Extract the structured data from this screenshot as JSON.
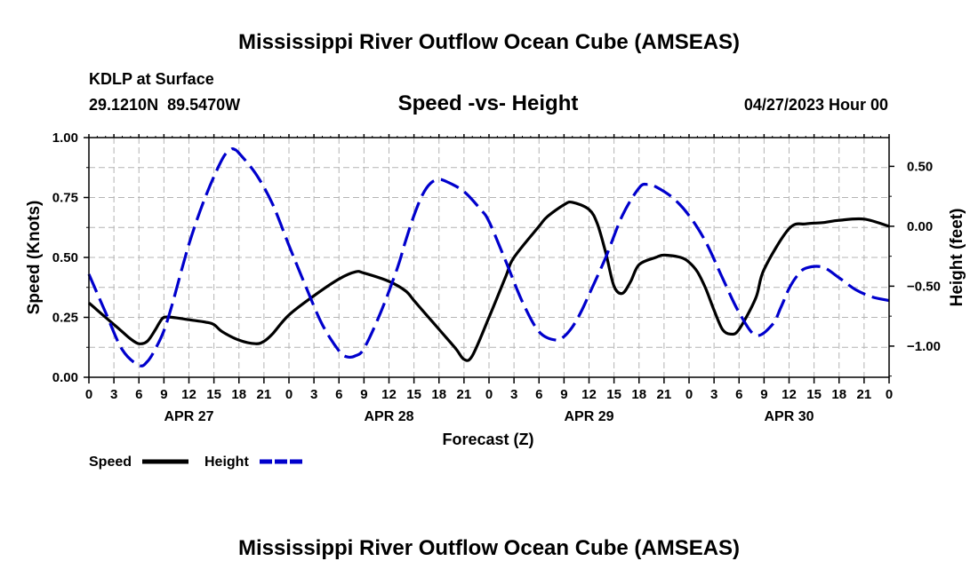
{
  "header": {
    "title": "Mississippi River Outflow Ocean Cube (AMSEAS)",
    "station": "KDLP at Surface",
    "coords": "29.1210N  89.5470W",
    "subtitle": "Speed -vs- Height",
    "run": "04/27/2023 Hour 00"
  },
  "footer": {
    "title": "Mississippi River Outflow Ocean Cube (AMSEAS)"
  },
  "chart_data": {
    "type": "line",
    "title": "Speed -vs- Height",
    "xlabel": "Forecast (Z)",
    "ylabel": "Speed (Knots)",
    "y2label": "Height (feet)",
    "x_range_hours": [
      0,
      96
    ],
    "ylim": [
      0,
      1.0
    ],
    "y2lim": [
      -1.26,
      0.74
    ],
    "x_tick_hours": [
      0,
      3,
      6,
      9,
      12,
      15,
      18,
      21,
      24,
      27,
      30,
      33,
      36,
      39,
      42,
      45,
      48,
      51,
      54,
      57,
      60,
      63,
      66,
      69,
      72,
      75,
      78,
      81,
      84,
      87,
      90,
      93,
      96
    ],
    "x_tick_labels": [
      "0",
      "3",
      "6",
      "9",
      "12",
      "15",
      "18",
      "21",
      "0",
      "3",
      "6",
      "9",
      "12",
      "15",
      "18",
      "21",
      "0",
      "3",
      "6",
      "9",
      "12",
      "15",
      "18",
      "21",
      "0",
      "3",
      "6",
      "9",
      "12",
      "15",
      "18",
      "21",
      "0"
    ],
    "day_labels": [
      {
        "hour": 12,
        "label": "APR 27"
      },
      {
        "hour": 36,
        "label": "APR 28"
      },
      {
        "hour": 60,
        "label": "APR 29"
      },
      {
        "hour": 84,
        "label": "APR 30"
      }
    ],
    "y_ticks": [
      0,
      0.25,
      0.5,
      0.75,
      1.0
    ],
    "y_tick_labels": [
      "0.00",
      "0.25",
      "0.50",
      "0.75",
      "1.00"
    ],
    "y2_ticks": [
      0.5,
      0,
      -0.5,
      -1.0
    ],
    "y2_tick_labels": [
      "0.50",
      "0.00",
      "−0.50",
      "−1.00"
    ],
    "grid": true,
    "legend": [
      {
        "name": "Speed",
        "color": "#000000",
        "dash": "solid"
      },
      {
        "name": "Height",
        "color": "#0000cc",
        "dash": "dashed"
      }
    ],
    "series": [
      {
        "name": "Speed",
        "axis": "left",
        "units": "knots",
        "color": "#000000",
        "hours": [
          0,
          1,
          2,
          3,
          4,
          5,
          6,
          7,
          8,
          8.5,
          9,
          10,
          12,
          14,
          15,
          16,
          18,
          20,
          21,
          22,
          24,
          27,
          30,
          32,
          33,
          36,
          38,
          39,
          40,
          42,
          44,
          45,
          46,
          48,
          50,
          51,
          54,
          55,
          57,
          58,
          60,
          61,
          62,
          63,
          64,
          65,
          66,
          68,
          69,
          71,
          72,
          73,
          74,
          75,
          76,
          77,
          78,
          80,
          81,
          84,
          86,
          88,
          90,
          93,
          96
        ],
        "values": [
          0.31,
          0.28,
          0.25,
          0.22,
          0.19,
          0.16,
          0.14,
          0.15,
          0.2,
          0.23,
          0.25,
          0.25,
          0.24,
          0.23,
          0.22,
          0.19,
          0.155,
          0.14,
          0.15,
          0.18,
          0.26,
          0.34,
          0.41,
          0.44,
          0.435,
          0.4,
          0.36,
          0.32,
          0.28,
          0.2,
          0.12,
          0.075,
          0.09,
          0.25,
          0.42,
          0.5,
          0.63,
          0.67,
          0.72,
          0.73,
          0.7,
          0.64,
          0.52,
          0.38,
          0.35,
          0.4,
          0.47,
          0.5,
          0.51,
          0.5,
          0.48,
          0.44,
          0.37,
          0.28,
          0.2,
          0.18,
          0.2,
          0.33,
          0.45,
          0.62,
          0.64,
          0.645,
          0.655,
          0.66,
          0.63
        ]
      },
      {
        "name": "Height",
        "axis": "right",
        "units": "feet",
        "color": "#0000cc",
        "hours": [
          0,
          2,
          4,
          6,
          7,
          8,
          9,
          10,
          12,
          14,
          16,
          17,
          17.5,
          18,
          20,
          22,
          24,
          26,
          28,
          30,
          31,
          32,
          33,
          35,
          37,
          38,
          39,
          40,
          41,
          42,
          43,
          45,
          47,
          48,
          50,
          52,
          54,
          56,
          57,
          58,
          59,
          60,
          62,
          64,
          66,
          67,
          68,
          70,
          72,
          74,
          76,
          78,
          80,
          82,
          83,
          84,
          85,
          86,
          88,
          90,
          92,
          94,
          96
        ],
        "values": [
          -0.4,
          -0.72,
          -1.03,
          -1.16,
          -1.13,
          -1.02,
          -0.87,
          -0.65,
          -0.15,
          0.25,
          0.56,
          0.64,
          0.64,
          0.61,
          0.44,
          0.19,
          -0.16,
          -0.5,
          -0.82,
          -1.04,
          -1.09,
          -1.08,
          -1.02,
          -0.72,
          -0.35,
          -0.12,
          0.09,
          0.26,
          0.36,
          0.39,
          0.37,
          0.29,
          0.14,
          0.04,
          -0.29,
          -0.63,
          -0.88,
          -0.95,
          -0.92,
          -0.84,
          -0.72,
          -0.57,
          -0.26,
          0.09,
          0.32,
          0.35,
          0.33,
          0.24,
          0.09,
          -0.13,
          -0.43,
          -0.72,
          -0.91,
          -0.82,
          -0.68,
          -0.52,
          -0.41,
          -0.35,
          -0.34,
          -0.43,
          -0.53,
          -0.59,
          -0.62
        ]
      }
    ]
  }
}
